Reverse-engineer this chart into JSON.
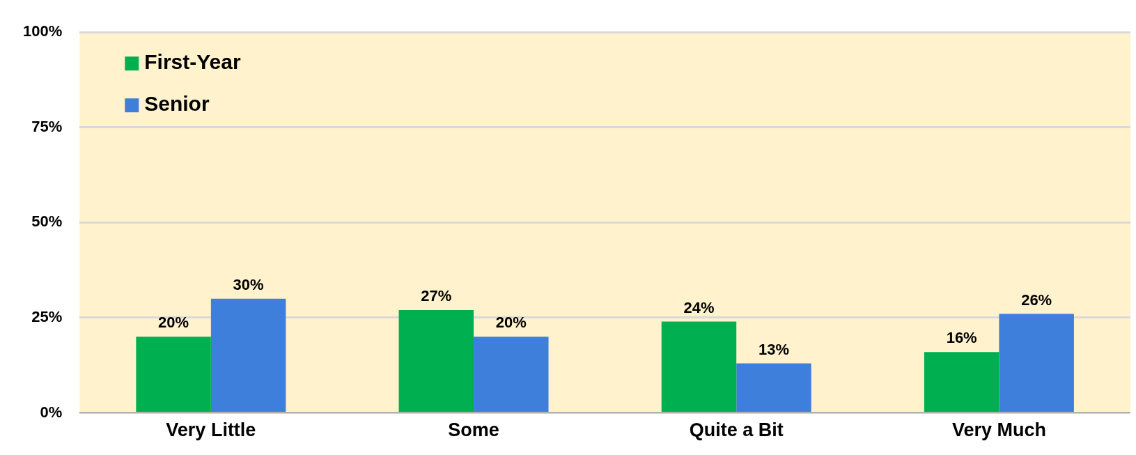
{
  "chart_data": {
    "type": "bar",
    "categories": [
      "Very Little",
      "Some",
      "Quite a Bit",
      "Very Much"
    ],
    "series": [
      {
        "name": "First-Year",
        "color": "#00b050",
        "values": [
          20,
          27,
          24,
          16
        ],
        "value_labels": [
          "20%",
          "27%",
          "24%",
          "16%"
        ]
      },
      {
        "name": "Senior",
        "color": "#3f7fdc",
        "values": [
          30,
          20,
          13,
          26
        ],
        "value_labels": [
          "30%",
          "20%",
          "13%",
          "26%"
        ]
      }
    ],
    "ylim": [
      0,
      100
    ],
    "yticks": [
      {
        "value": 0,
        "label": "0%"
      },
      {
        "value": 25,
        "label": "25%"
      },
      {
        "value": 50,
        "label": "50%"
      },
      {
        "value": 75,
        "label": "75%"
      },
      {
        "value": 100,
        "label": "100%"
      }
    ],
    "grid": "y",
    "legend": "top left"
  }
}
